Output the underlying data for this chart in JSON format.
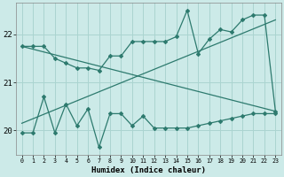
{
  "xlabel": "Humidex (Indice chaleur)",
  "bg_color": "#cceae8",
  "line_color": "#2d7a6e",
  "grid_color": "#aad4d0",
  "xlim": [
    -0.5,
    23.5
  ],
  "ylim": [
    19.5,
    22.65
  ],
  "yticks": [
    20,
    21,
    22
  ],
  "xticks": [
    0,
    1,
    2,
    3,
    4,
    5,
    6,
    7,
    8,
    9,
    10,
    11,
    12,
    13,
    14,
    15,
    16,
    17,
    18,
    19,
    20,
    21,
    22,
    23
  ],
  "line_upper_x": [
    0,
    1,
    2,
    3,
    4,
    5,
    6,
    7,
    8,
    9,
    10,
    11,
    12,
    13,
    14,
    15,
    16,
    17,
    18,
    19,
    20,
    21,
    22,
    23
  ],
  "line_upper_y": [
    21.75,
    21.75,
    21.75,
    21.5,
    21.4,
    21.3,
    21.3,
    21.25,
    21.55,
    21.55,
    21.85,
    21.85,
    21.85,
    21.85,
    21.95,
    22.5,
    21.6,
    21.9,
    22.1,
    22.05,
    22.3,
    22.4,
    22.4,
    20.4
  ],
  "line_lower_x": [
    0,
    1,
    2,
    3,
    4,
    5,
    6,
    7,
    8,
    9,
    10,
    11,
    12,
    13,
    14,
    15,
    16,
    17,
    18,
    19,
    20,
    21,
    22,
    23
  ],
  "line_lower_y": [
    19.95,
    19.95,
    20.7,
    19.95,
    20.55,
    20.1,
    20.45,
    19.65,
    20.35,
    20.35,
    20.1,
    20.3,
    20.05,
    20.05,
    20.05,
    20.05,
    20.1,
    20.15,
    20.2,
    20.25,
    20.3,
    20.35,
    20.35,
    20.35
  ],
  "trend1_x": [
    0,
    23
  ],
  "trend1_y": [
    21.75,
    20.4
  ],
  "trend2_x": [
    0,
    23
  ],
  "trend2_y": [
    20.15,
    22.3
  ]
}
